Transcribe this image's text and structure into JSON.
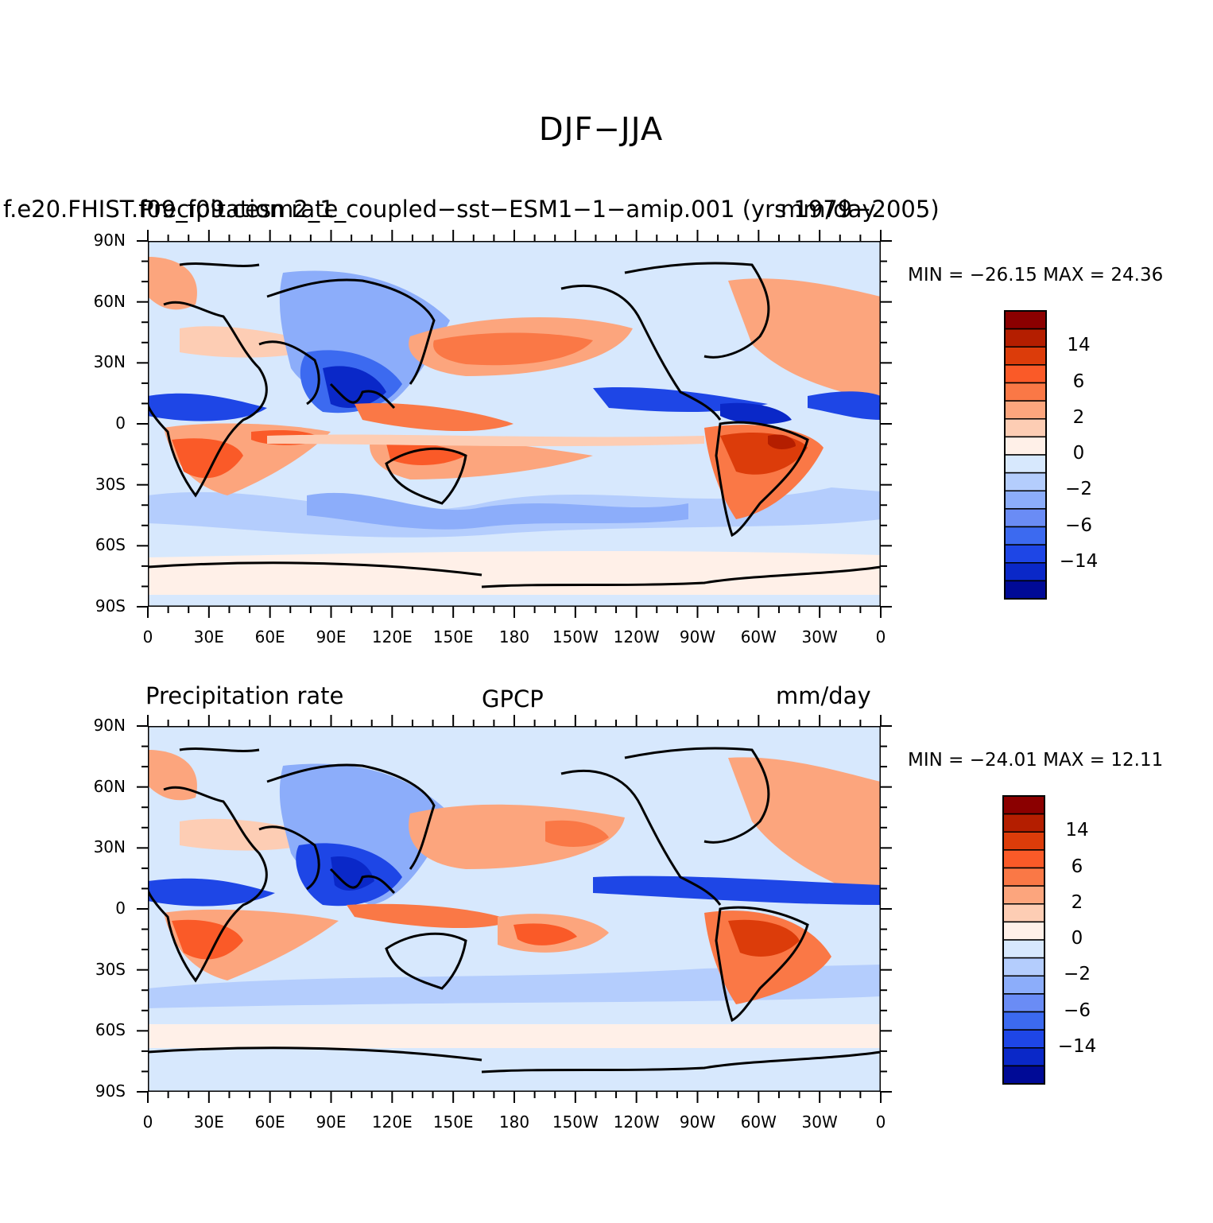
{
  "main_title": "DJF−JJA",
  "lon_labels": [
    "0",
    "30E",
    "60E",
    "90E",
    "120E",
    "150E",
    "180",
    "150W",
    "120W",
    "90W",
    "60W",
    "30W",
    "0"
  ],
  "lat_labels": [
    "90N",
    "60N",
    "30N",
    "0",
    "30S",
    "60S",
    "90S"
  ],
  "colorbar": {
    "labels": [
      "14",
      "6",
      "2",
      "0",
      "−2",
      "−6",
      "−14"
    ],
    "colors": [
      "#8b0000",
      "#b41e00",
      "#dc3c0a",
      "#fa5a28",
      "#fa7846",
      "#fca57d",
      "#fdcdb4",
      "#fff0e8",
      "#d7e8fd",
      "#b4cdfd",
      "#8cadfa",
      "#6a8cf5",
      "#3c6af0",
      "#1e46e6",
      "#0a28c8",
      "#000a96"
    ]
  },
  "panels": [
    {
      "left_title": "f.e20.FHIST.f09_f09.cesm2_1_coupled−sst−ESM1−1−amip.001 (yrs 1979−2005)",
      "center_title": "Precipitation rate",
      "right_title": "mm/day",
      "min_max": "MIN = −26.15  MAX =   24.36"
    },
    {
      "left_title": "Precipitation rate",
      "center_title": "GPCP",
      "right_title": "mm/day",
      "min_max": "MIN = −24.01  MAX =   12.11"
    }
  ]
}
